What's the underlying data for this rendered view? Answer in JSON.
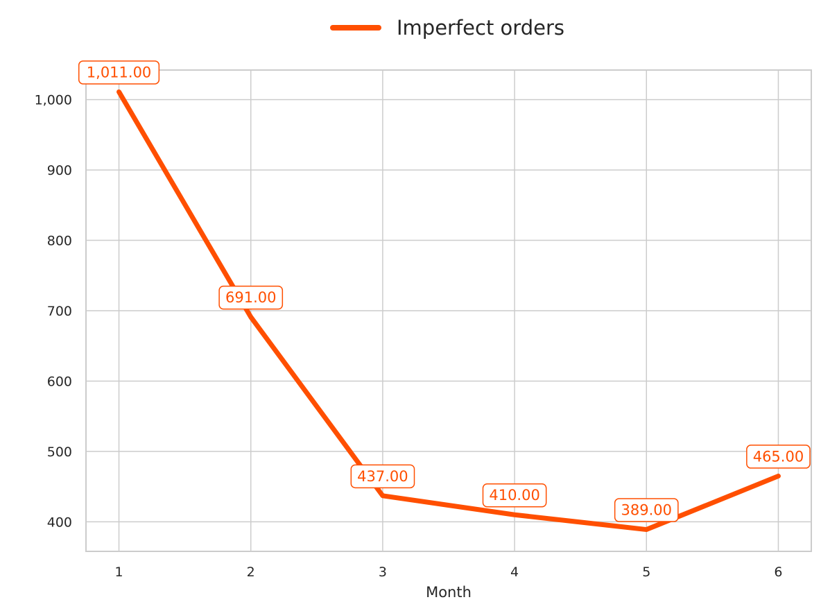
{
  "chart_data": {
    "type": "line",
    "x": [
      1,
      2,
      3,
      4,
      5,
      6
    ],
    "series": [
      {
        "name": "Imperfect orders",
        "values": [
          1011,
          691,
          437,
          410,
          389,
          465
        ],
        "labels": [
          "1,011.00",
          "691.00",
          "437.00",
          "410.00",
          "389.00",
          "465.00"
        ],
        "color": "#ff4f00"
      }
    ],
    "title": "",
    "xlabel": "Month",
    "ylabel": "",
    "x_ticks": [
      "1",
      "2",
      "3",
      "4",
      "5",
      "6"
    ],
    "y_ticks": [
      400,
      500,
      600,
      700,
      800,
      900,
      1000
    ],
    "y_tick_labels": [
      "400",
      "500",
      "600",
      "700",
      "800",
      "900",
      "1,000"
    ],
    "xlim": [
      0.75,
      6.25
    ],
    "ylim": [
      358,
      1042
    ],
    "grid": true,
    "legend_position": "top-center"
  },
  "colors": {
    "grid": "#cccccc",
    "spine": "#cccccc",
    "text": "#262626",
    "label_box_fill": "#ffffff"
  }
}
